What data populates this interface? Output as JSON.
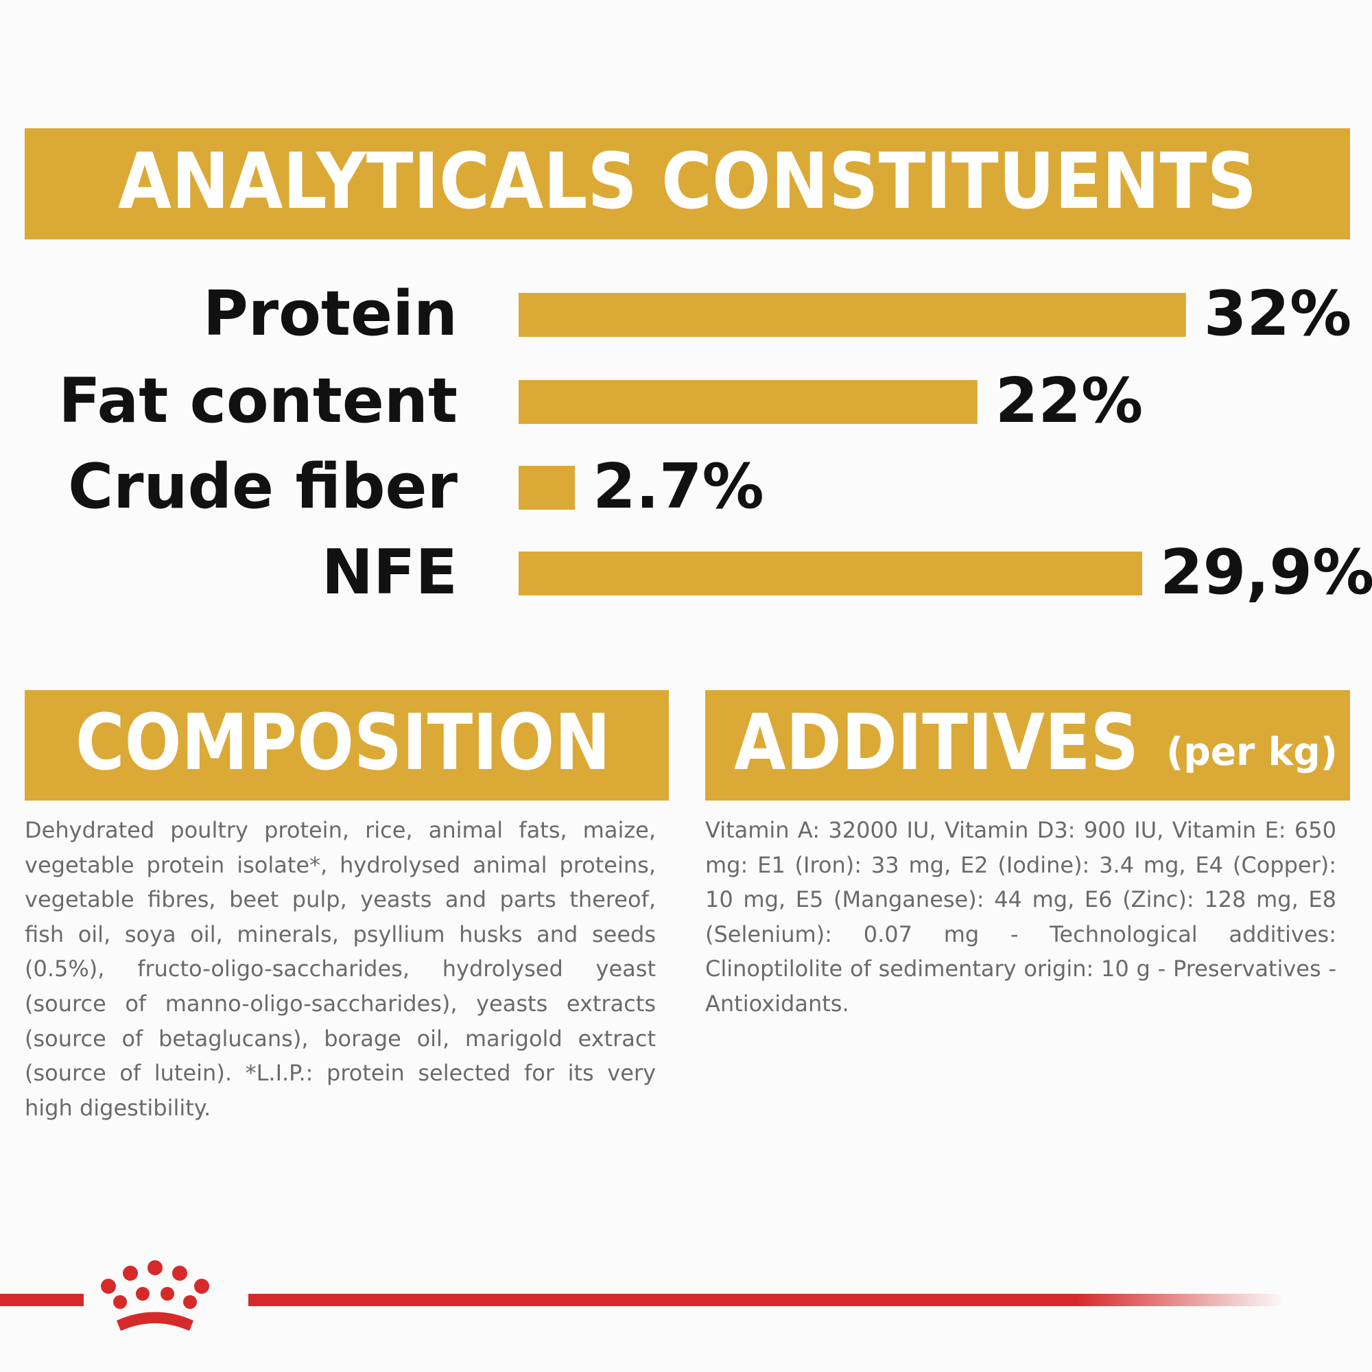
{
  "chart_data": {
    "type": "bar",
    "orientation": "horizontal",
    "title": "ANALYTICALS CONSTITUENTS",
    "categories": [
      "Protein",
      "Fat content",
      "Crude fiber",
      "NFE"
    ],
    "values": [
      32,
      22,
      2.7,
      29.9
    ],
    "value_labels": [
      "32%",
      "22%",
      "2.7%",
      "29,9%"
    ],
    "color": "#dba936"
  },
  "composition": {
    "title": "COMPOSITION",
    "text": "Dehydrated poultry protein, rice, animal fats, maize, vegetable protein isolate*, hydrolysed animal proteins, vegetable fibres, beet pulp, yeasts and parts thereof, fish oil, soya oil, minerals, psyllium husks and seeds (0.5%), fructo-oligo-saccharides, hydrolysed yeast (source of manno-oligo-saccharides), yeasts extracts (source of betaglucans), borage oil, marigold extract (source of lutein). *L.I.P.: protein selected for its very high digestibility."
  },
  "additives": {
    "title": "ADDITIVES",
    "unit": "(per kg)",
    "text": "Vitamin A: 32000 IU, Vitamin D3: 900 IU, Vitamin E: 650 mg: E1 (Iron): 33 mg, E2 (Iodine): 3.4 mg, E4 (Copper): 10 mg, E5 (Manganese): 44 mg, E6 (Zinc): 128 mg, E8 (Selenium): 0.07 mg - Technological additives: Clinoptilolite of sedimentary origin: 10 g - Preservatives - Antioxidants."
  }
}
